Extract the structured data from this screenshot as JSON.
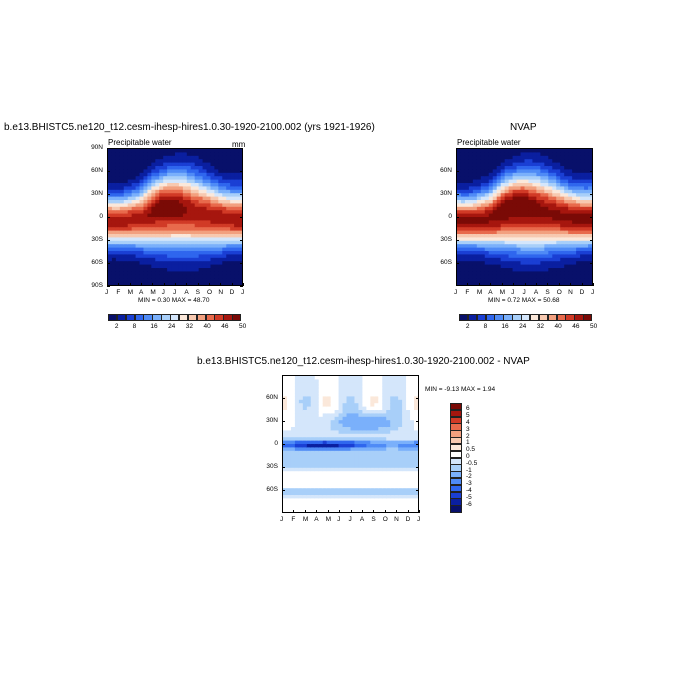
{
  "panels": {
    "top_left": {
      "title": "b.e13.BHISTC5.ne120_t12.cesm-ihesp-hires1.0.30-1920-2100.002 (yrs 1921-1926)",
      "subtitle": "Precipitable water",
      "units": "mm",
      "minmax": "MIN =   0.30 MAX =  48.70"
    },
    "top_right": {
      "title": "NVAP",
      "subtitle": "Precipitable water",
      "minmax": "MIN =   0.72 MAX =  50.68"
    },
    "bottom": {
      "title": "b.e13.BHISTC5.ne120_t12.cesm-ihesp-hires1.0.30-1920-2100.002 - NVAP",
      "minmax": "MIN =  -9.13 MAX =   1.94"
    }
  },
  "colors": {
    "top_palette": [
      "#08106a",
      "#0a1fa0",
      "#1a3fd4",
      "#2f66ee",
      "#4f8bf6",
      "#7ab0fb",
      "#a8cff9",
      "#d4e6fb",
      "#fbe8da",
      "#f7c9b0",
      "#f2a07f",
      "#e86a4c",
      "#d13a26",
      "#a6160e",
      "#7a0a06"
    ],
    "diff_palette": [
      "#08106a",
      "#0a1fa0",
      "#1a3fd4",
      "#2f66ee",
      "#4f8bf6",
      "#7ab0fb",
      "#a8cff9",
      "#d4e6fb",
      "#ffffff",
      "#fbe8da",
      "#f7c9b0",
      "#f2a07f",
      "#e86a4c",
      "#d13a26",
      "#a6160e",
      "#7a0a06"
    ]
  },
  "chart_data": [
    {
      "type": "heatmap",
      "name": "Precipitable water (model)",
      "x": [
        "J",
        "F",
        "M",
        "A",
        "M",
        "J",
        "J",
        "A",
        "S",
        "O",
        "N",
        "D",
        "J"
      ],
      "y_ticks": [
        "90N",
        "60N",
        "30N",
        "0",
        "30S",
        "60S",
        "90S"
      ],
      "ylim": [
        -90,
        90
      ],
      "colorbar_labels": [
        "2",
        "8",
        "16",
        "24",
        "32",
        "40",
        "46",
        "50"
      ],
      "min": 0.3,
      "max": 48.7
    },
    {
      "type": "heatmap",
      "name": "Precipitable water (NVAP)",
      "x": [
        "J",
        "F",
        "M",
        "A",
        "M",
        "J",
        "J",
        "A",
        "S",
        "O",
        "N",
        "D",
        "J"
      ],
      "y_ticks": [
        "60N",
        "30N",
        "0",
        "30S",
        "60S"
      ],
      "colorbar_labels": [
        "2",
        "8",
        "16",
        "24",
        "32",
        "40",
        "46",
        "50"
      ],
      "min": 0.72,
      "max": 50.68
    },
    {
      "type": "heatmap",
      "name": "Difference model - NVAP",
      "x": [
        "J",
        "F",
        "M",
        "A",
        "M",
        "J",
        "J",
        "A",
        "S",
        "O",
        "N",
        "D",
        "J"
      ],
      "y_ticks": [
        "60N",
        "30N",
        "0",
        "30S",
        "60S"
      ],
      "colorbar_labels": [
        "6",
        "5",
        "4",
        "3",
        "2",
        "1",
        "0.5",
        "0",
        "-0.5",
        "-1",
        "-2",
        "-3",
        "-4",
        "-5",
        "-6"
      ],
      "min": -9.13,
      "max": 1.94
    }
  ]
}
